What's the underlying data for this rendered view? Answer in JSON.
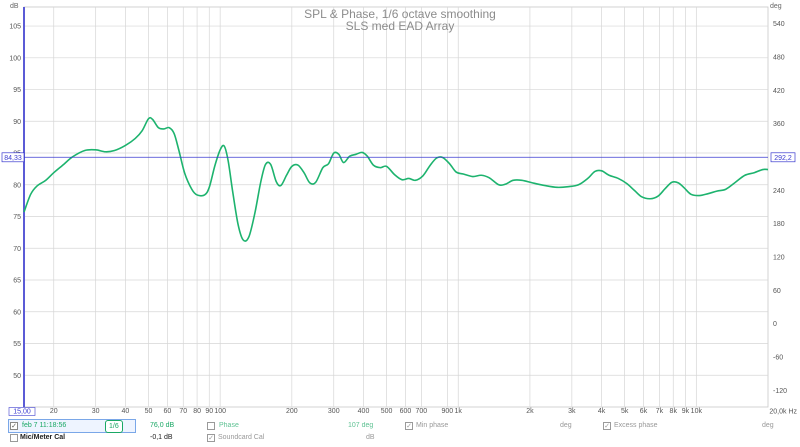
{
  "chart_data": {
    "type": "line",
    "title": "SPL & Phase, 1/6 octave smoothing",
    "subtitle": "SLS med EAD Array",
    "y_left_unit": "dB",
    "y_right_unit": "deg",
    "x_unit": "Hz",
    "xlim": [
      15,
      20000
    ],
    "x_scale": "log",
    "ylim": [
      45,
      108
    ],
    "ylim_right": [
      -150,
      570
    ],
    "yticks_left": [
      50,
      55,
      60,
      65,
      70,
      75,
      80,
      85,
      90,
      95,
      100,
      105
    ],
    "yticks_right": [
      -120,
      -60,
      0,
      60,
      120,
      180,
      240,
      300,
      360,
      420,
      480,
      540
    ],
    "xticks": [
      {
        "v": 20,
        "label": "20"
      },
      {
        "v": 30,
        "label": "30"
      },
      {
        "v": 40,
        "label": "40"
      },
      {
        "v": 50,
        "label": "50"
      },
      {
        "v": 60,
        "label": "60"
      },
      {
        "v": 70,
        "label": "70"
      },
      {
        "v": 80,
        "label": "80"
      },
      {
        "v": 90,
        "label": "90"
      },
      {
        "v": 100,
        "label": "100"
      },
      {
        "v": 200,
        "label": "200"
      },
      {
        "v": 300,
        "label": "300"
      },
      {
        "v": 400,
        "label": "400"
      },
      {
        "v": 500,
        "label": "500"
      },
      {
        "v": 600,
        "label": "600"
      },
      {
        "v": 700,
        "label": "700"
      },
      {
        "v": 900,
        "label": "900"
      },
      {
        "v": 1000,
        "label": "1k"
      },
      {
        "v": 2000,
        "label": "2k"
      },
      {
        "v": 3000,
        "label": "3k"
      },
      {
        "v": 4000,
        "label": "4k"
      },
      {
        "v": 5000,
        "label": "5k"
      },
      {
        "v": 6000,
        "label": "6k"
      },
      {
        "v": 7000,
        "label": "7k"
      },
      {
        "v": 8000,
        "label": "8k"
      },
      {
        "v": 9000,
        "label": "9k"
      },
      {
        "v": 10000,
        "label": "10k"
      }
    ],
    "x_start_label": "15,00",
    "x_end_label": "20,0k Hz",
    "cursor": {
      "y_db": 84.33,
      "left_label": "84,33",
      "right_label": "292,2"
    },
    "series": [
      {
        "name": "feb 7 11:18:56",
        "color": "#1db36e",
        "points": [
          [
            15,
            75.7
          ],
          [
            16,
            78.5
          ],
          [
            17,
            79.8
          ],
          [
            18.5,
            80.7
          ],
          [
            20,
            81.9
          ],
          [
            22,
            83.2
          ],
          [
            24,
            84.4
          ],
          [
            27,
            85.4
          ],
          [
            30,
            85.5
          ],
          [
            33,
            85.2
          ],
          [
            36,
            85.4
          ],
          [
            40,
            86.2
          ],
          [
            44,
            87.3
          ],
          [
            47,
            88.5
          ],
          [
            50,
            90.4
          ],
          [
            52,
            90.3
          ],
          [
            55,
            89.0
          ],
          [
            58,
            88.8
          ],
          [
            61,
            89.0
          ],
          [
            64,
            88.1
          ],
          [
            67,
            85.5
          ],
          [
            71,
            81.8
          ],
          [
            76,
            79.3
          ],
          [
            80,
            78.4
          ],
          [
            86,
            78.4
          ],
          [
            90,
            79.6
          ],
          [
            95,
            83.0
          ],
          [
            100,
            85.5
          ],
          [
            104,
            86.1
          ],
          [
            108,
            83.8
          ],
          [
            113,
            78.8
          ],
          [
            119,
            73.7
          ],
          [
            125,
            71.3
          ],
          [
            132,
            71.8
          ],
          [
            140,
            75.6
          ],
          [
            148,
            80.4
          ],
          [
            155,
            83.2
          ],
          [
            163,
            83.2
          ],
          [
            172,
            80.5
          ],
          [
            180,
            79.9
          ],
          [
            190,
            81.5
          ],
          [
            200,
            82.9
          ],
          [
            212,
            83.1
          ],
          [
            225,
            81.9
          ],
          [
            238,
            80.3
          ],
          [
            252,
            80.4
          ],
          [
            270,
            82.7
          ],
          [
            285,
            83.3
          ],
          [
            300,
            85.0
          ],
          [
            315,
            84.8
          ],
          [
            330,
            83.5
          ],
          [
            350,
            84.5
          ],
          [
            372,
            84.8
          ],
          [
            395,
            85.1
          ],
          [
            415,
            84.5
          ],
          [
            440,
            83.1
          ],
          [
            470,
            82.7
          ],
          [
            500,
            82.9
          ],
          [
            540,
            81.6
          ],
          [
            580,
            80.8
          ],
          [
            620,
            81.0
          ],
          [
            660,
            80.7
          ],
          [
            710,
            81.4
          ],
          [
            760,
            83.0
          ],
          [
            810,
            84.2
          ],
          [
            860,
            84.3
          ],
          [
            920,
            83.3
          ],
          [
            980,
            82.0
          ],
          [
            1050,
            81.7
          ],
          [
            1150,
            81.3
          ],
          [
            1250,
            81.5
          ],
          [
            1350,
            81.1
          ],
          [
            1480,
            80.0
          ],
          [
            1580,
            80.1
          ],
          [
            1700,
            80.7
          ],
          [
            1850,
            80.7
          ],
          [
            2050,
            80.3
          ],
          [
            2300,
            79.9
          ],
          [
            2600,
            79.6
          ],
          [
            2900,
            79.7
          ],
          [
            3200,
            80.0
          ],
          [
            3500,
            81.0
          ],
          [
            3750,
            82.1
          ],
          [
            4000,
            82.2
          ],
          [
            4300,
            81.5
          ],
          [
            4700,
            81.0
          ],
          [
            5100,
            80.2
          ],
          [
            5500,
            79.1
          ],
          [
            5900,
            78.1
          ],
          [
            6400,
            77.8
          ],
          [
            6900,
            78.2
          ],
          [
            7400,
            79.4
          ],
          [
            7900,
            80.4
          ],
          [
            8400,
            80.3
          ],
          [
            8900,
            79.5
          ],
          [
            9500,
            78.5
          ],
          [
            10300,
            78.3
          ],
          [
            11200,
            78.6
          ],
          [
            12200,
            79.0
          ],
          [
            13300,
            79.3
          ],
          [
            14600,
            80.4
          ],
          [
            16000,
            81.5
          ],
          [
            17500,
            81.9
          ],
          [
            19000,
            82.4
          ],
          [
            20000,
            82.4
          ]
        ]
      }
    ]
  },
  "legend": {
    "row1": {
      "checked_mark": "✓",
      "measurement": "feb 7 11:18:56",
      "smoothing": "1/6",
      "level": "76,0 dB",
      "phase_label": "Phase",
      "phase_value": "107 deg",
      "min_phase_label": "Min phase",
      "min_phase_unit": "deg",
      "excess_phase_label": "Excess phase",
      "excess_phase_unit": "deg"
    },
    "row2": {
      "mic_label": "Mic/Meter Cal",
      "mic_value": "-0,1 dB",
      "soundcard_label": "Soundcard Cal",
      "soundcard_unit": "dB"
    }
  },
  "colors": {
    "series": "#1db36e",
    "cursor": "#3b3bd0",
    "grid": "#d9d9d9",
    "axis_text": "#666666",
    "title": "#8c8c8c"
  }
}
